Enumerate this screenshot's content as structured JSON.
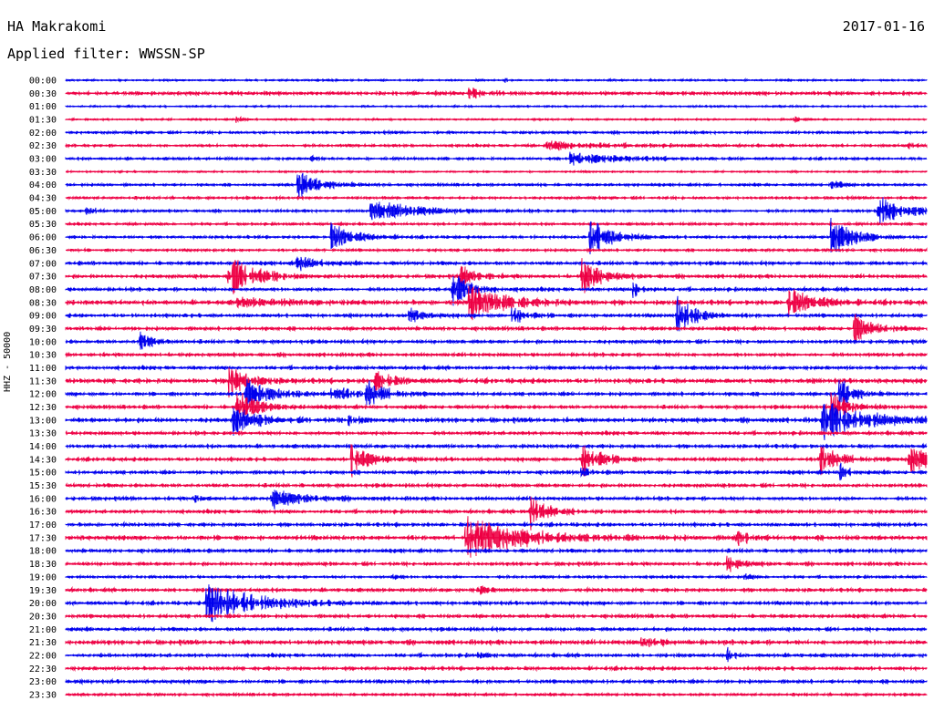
{
  "header": {
    "station": "HA Makrakomi",
    "date": "2017-01-16",
    "filter": "Applied filter: WWSSN-SP"
  },
  "colors": {
    "blue": "#0000ee",
    "red": "#ee0044"
  },
  "chart_data": {
    "type": "line",
    "title": "HA Makrakomi",
    "ylabel": "HHZ - 50000",
    "trace_minutes": 30,
    "trace_colors": [
      "blue",
      "red"
    ],
    "row_labels": [
      "00:00",
      "00:30",
      "01:00",
      "01:30",
      "02:00",
      "02:30",
      "03:00",
      "03:30",
      "04:00",
      "04:30",
      "05:00",
      "05:30",
      "06:00",
      "06:30",
      "07:00",
      "07:30",
      "08:00",
      "08:30",
      "09:00",
      "09:30",
      "10:00",
      "10:30",
      "11:00",
      "11:30",
      "12:00",
      "12:30",
      "13:00",
      "13:30",
      "14:00",
      "14:30",
      "15:00",
      "15:30",
      "16:00",
      "16:30",
      "17:00",
      "17:30",
      "18:00",
      "18:30",
      "19:00",
      "19:30",
      "20:00",
      "20:30",
      "21:00",
      "21:30",
      "22:00",
      "22:30",
      "23:00",
      "23:30"
    ],
    "noise": [
      1,
      2,
      1,
      1,
      1.5,
      1.5,
      1.5,
      1,
      1.5,
      1.5,
      1.5,
      1.5,
      1.5,
      1.5,
      2,
      2,
      2,
      2.5,
      2,
      2,
      2,
      2,
      2,
      2.5,
      2,
      2,
      2.5,
      2,
      2,
      2,
      2,
      2,
      2,
      2,
      2,
      2.5,
      2,
      2,
      1.5,
      2,
      2,
      2,
      2,
      2.5,
      2,
      2,
      2,
      1.5
    ],
    "events": [
      {
        "row": 0,
        "x": 0.3,
        "amp": 2,
        "dur": 0.004
      },
      {
        "row": 0,
        "x": 0.51,
        "amp": 3,
        "dur": 0.004
      },
      {
        "row": 1,
        "x": 0.47,
        "amp": 6,
        "dur": 0.015
      },
      {
        "row": 3,
        "x": 0.2,
        "amp": 3,
        "dur": 0.008
      },
      {
        "row": 3,
        "x": 0.847,
        "amp": 4,
        "dur": 0.008
      },
      {
        "row": 5,
        "x": 0.56,
        "amp": 5,
        "dur": 0.06
      },
      {
        "row": 5,
        "x": 0.98,
        "amp": 3,
        "dur": 0.008
      },
      {
        "row": 6,
        "x": 0.587,
        "amp": 7,
        "dur": 0.05
      },
      {
        "row": 6,
        "x": 0.286,
        "amp": 3,
        "dur": 0.005
      },
      {
        "row": 8,
        "x": 0.27,
        "amp": 15,
        "dur": 0.025
      },
      {
        "row": 8,
        "x": 0.89,
        "amp": 4,
        "dur": 0.015
      },
      {
        "row": 10,
        "x": 0.355,
        "amp": 12,
        "dur": 0.05
      },
      {
        "row": 10,
        "x": 0.025,
        "amp": 5,
        "dur": 0.01
      },
      {
        "row": 10,
        "x": 0.944,
        "amp": 18,
        "dur": 0.03
      },
      {
        "row": 12,
        "x": 0.31,
        "amp": 15,
        "dur": 0.025
      },
      {
        "row": 12,
        "x": 0.61,
        "amp": 20,
        "dur": 0.025
      },
      {
        "row": 12,
        "x": 0.89,
        "amp": 20,
        "dur": 0.025
      },
      {
        "row": 14,
        "x": 0.27,
        "amp": 8,
        "dur": 0.02
      },
      {
        "row": 15,
        "x": 0.19,
        "amp": 22,
        "dur": 0.03
      },
      {
        "row": 15,
        "x": 0.46,
        "amp": 10,
        "dur": 0.02
      },
      {
        "row": 15,
        "x": 0.6,
        "amp": 20,
        "dur": 0.02
      },
      {
        "row": 16,
        "x": 0.45,
        "amp": 18,
        "dur": 0.02
      },
      {
        "row": 16,
        "x": 0.66,
        "amp": 10,
        "dur": 0.01
      },
      {
        "row": 17,
        "x": 0.47,
        "amp": 18,
        "dur": 0.04
      },
      {
        "row": 17,
        "x": 0.84,
        "amp": 15,
        "dur": 0.03
      },
      {
        "row": 17,
        "x": 0.2,
        "amp": 4,
        "dur": 0.06
      },
      {
        "row": 18,
        "x": 0.4,
        "amp": 8,
        "dur": 0.015
      },
      {
        "row": 18,
        "x": 0.52,
        "amp": 10,
        "dur": 0.015
      },
      {
        "row": 18,
        "x": 0.71,
        "amp": 22,
        "dur": 0.02
      },
      {
        "row": 19,
        "x": 0.917,
        "amp": 15,
        "dur": 0.02
      },
      {
        "row": 20,
        "x": 0.087,
        "amp": 10,
        "dur": 0.015
      },
      {
        "row": 23,
        "x": 0.19,
        "amp": 18,
        "dur": 0.02
      },
      {
        "row": 23,
        "x": 0.36,
        "amp": 10,
        "dur": 0.02
      },
      {
        "row": 24,
        "x": 0.21,
        "amp": 15,
        "dur": 0.03
      },
      {
        "row": 24,
        "x": 0.31,
        "amp": 10,
        "dur": 0.02
      },
      {
        "row": 24,
        "x": 0.35,
        "amp": 15,
        "dur": 0.02
      },
      {
        "row": 24,
        "x": 0.9,
        "amp": 18,
        "dur": 0.015
      },
      {
        "row": 25,
        "x": 0.2,
        "amp": 22,
        "dur": 0.02
      },
      {
        "row": 25,
        "x": 0.89,
        "amp": 18,
        "dur": 0.02
      },
      {
        "row": 26,
        "x": 0.195,
        "amp": 15,
        "dur": 0.025
      },
      {
        "row": 26,
        "x": 0.33,
        "amp": 5,
        "dur": 0.015
      },
      {
        "row": 26,
        "x": 0.88,
        "amp": 20,
        "dur": 0.05
      },
      {
        "row": 29,
        "x": 0.333,
        "amp": 18,
        "dur": 0.02
      },
      {
        "row": 29,
        "x": 0.6,
        "amp": 20,
        "dur": 0.02
      },
      {
        "row": 29,
        "x": 0.875,
        "amp": 20,
        "dur": 0.02
      },
      {
        "row": 29,
        "x": 0.98,
        "amp": 18,
        "dur": 0.02
      },
      {
        "row": 30,
        "x": 0.6,
        "amp": 4,
        "dur": 0.01
      },
      {
        "row": 30,
        "x": 0.9,
        "amp": 10,
        "dur": 0.008
      },
      {
        "row": 32,
        "x": 0.24,
        "amp": 12,
        "dur": 0.03
      },
      {
        "row": 32,
        "x": 0.15,
        "amp": 4,
        "dur": 0.01
      },
      {
        "row": 33,
        "x": 0.54,
        "amp": 20,
        "dur": 0.02
      },
      {
        "row": 35,
        "x": 0.465,
        "amp": 24,
        "dur": 0.06
      },
      {
        "row": 35,
        "x": 0.78,
        "amp": 8,
        "dur": 0.015
      },
      {
        "row": 37,
        "x": 0.77,
        "amp": 8,
        "dur": 0.015
      },
      {
        "row": 38,
        "x": 0.38,
        "amp": 3,
        "dur": 0.008
      },
      {
        "row": 38,
        "x": 0.79,
        "amp": 3,
        "dur": 0.008
      },
      {
        "row": 39,
        "x": 0.48,
        "amp": 5,
        "dur": 0.01
      },
      {
        "row": 40,
        "x": 0.165,
        "amp": 24,
        "dur": 0.05
      },
      {
        "row": 43,
        "x": 0.67,
        "amp": 5,
        "dur": 0.02
      },
      {
        "row": 44,
        "x": 0.77,
        "amp": 8,
        "dur": 0.005
      },
      {
        "row": 44,
        "x": 0.48,
        "amp": 3,
        "dur": 0.008
      },
      {
        "row": 44,
        "x": 0.03,
        "amp": 3,
        "dur": 0.005
      }
    ]
  }
}
